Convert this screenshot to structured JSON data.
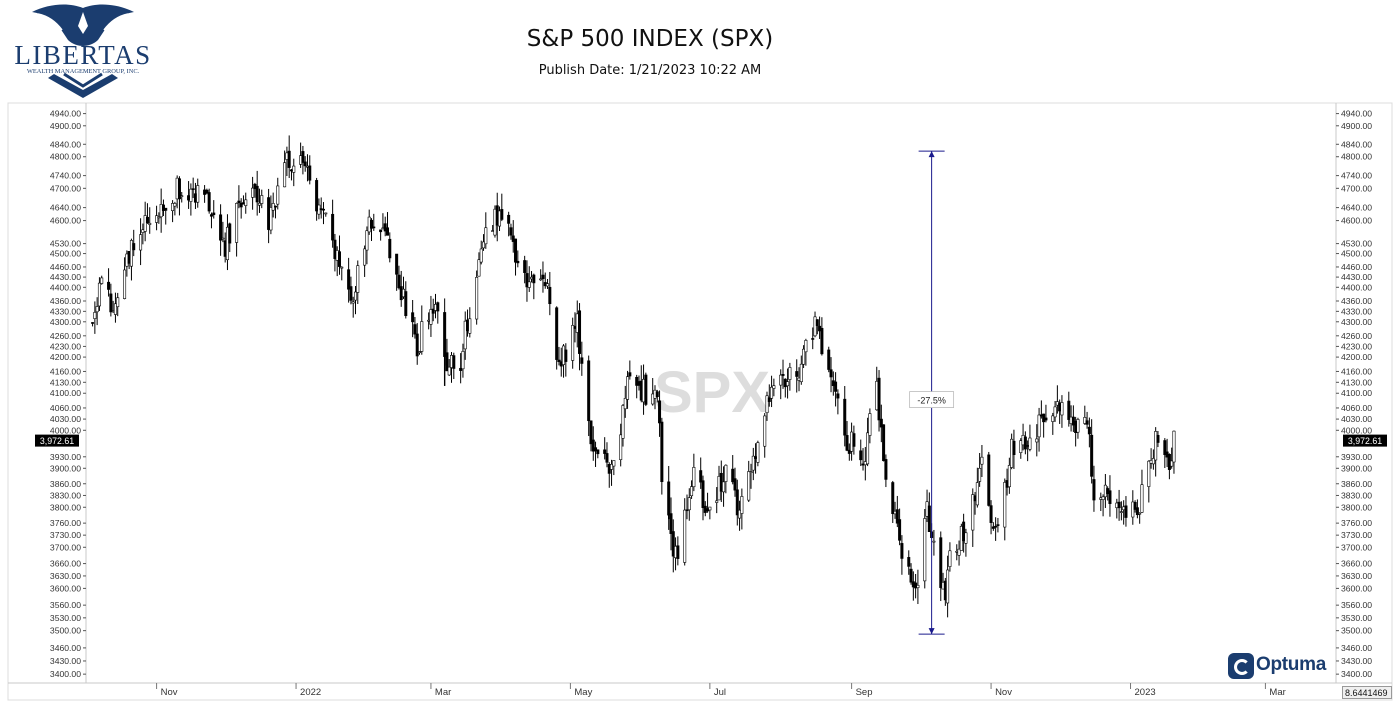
{
  "header": {
    "brand_name": "LIBERTAS",
    "brand_tagline": "WEALTH MANAGEMENT GROUP, INC.",
    "title": "S&P 500 INDEX (SPX)",
    "publish_date": "Publish Date: 1/21/2023 10:22 AM"
  },
  "footer": {
    "vendor": "Optuma",
    "scale_box": "8.6441469"
  },
  "colors": {
    "candle": "#000000",
    "measure": "#1a1a8c",
    "price_tag_bg": "#000000",
    "watermark": "#d8d8d8",
    "brand": "#1b3d6f"
  },
  "chart_data": {
    "type": "ohlc",
    "title": "S&P 500 INDEX (SPX)",
    "subtitle": "Publish Date: 1/21/2023 10:22 AM",
    "watermark": "SPX",
    "y_scale": "log",
    "ylim": [
      3380,
      4975
    ],
    "y_ticks": [
      "4940.00",
      "4900.00",
      "4840.00",
      "4800.00",
      "4740.00",
      "4700.00",
      "4640.00",
      "4600.00",
      "4530.00",
      "4500.00",
      "4460.00",
      "4430.00",
      "4400.00",
      "4360.00",
      "4330.00",
      "4300.00",
      "4260.00",
      "4230.00",
      "4200.00",
      "4160.00",
      "4130.00",
      "4100.00",
      "4060.00",
      "4030.00",
      "4000.00",
      "3930.00",
      "3900.00",
      "3860.00",
      "3830.00",
      "3800.00",
      "3760.00",
      "3730.00",
      "3700.00",
      "3660.00",
      "3630.00",
      "3600.00",
      "3560.00",
      "3530.00",
      "3500.00",
      "3460.00",
      "3430.00",
      "3400.00"
    ],
    "xlim": [
      "2021-10-02",
      "2023-03-31"
    ],
    "x_ticks": [
      {
        "date": "2021-11-01",
        "label": "Nov"
      },
      {
        "date": "2022-01-01",
        "label": "2022"
      },
      {
        "date": "2022-03-01",
        "label": "Mar"
      },
      {
        "date": "2022-05-01",
        "label": "May"
      },
      {
        "date": "2022-07-01",
        "label": "Jul"
      },
      {
        "date": "2022-09-01",
        "label": "Sep"
      },
      {
        "date": "2022-11-01",
        "label": "Nov"
      },
      {
        "date": "2023-01-01",
        "label": "2023"
      },
      {
        "date": "2023-03-01",
        "label": "Mar"
      }
    ],
    "last_price": 3972.61,
    "last_price_label": "3,972.61",
    "measurement": {
      "label": "-27.5%",
      "date": "2022-10-06",
      "high": 4818,
      "low": 3492
    },
    "price_path": [
      [
        "2021-10-04",
        4300
      ],
      [
        "2021-10-07",
        4400
      ],
      [
        "2021-10-13",
        4350
      ],
      [
        "2021-10-18",
        4480
      ],
      [
        "2021-10-25",
        4570
      ],
      [
        "2021-11-01",
        4610
      ],
      [
        "2021-11-08",
        4690
      ],
      [
        "2021-11-15",
        4700
      ],
      [
        "2021-11-22",
        4690
      ],
      [
        "2021-11-26",
        4590
      ],
      [
        "2021-12-01",
        4520
      ],
      [
        "2021-12-06",
        4620
      ],
      [
        "2021-12-10",
        4700
      ],
      [
        "2021-12-16",
        4660
      ],
      [
        "2021-12-20",
        4570
      ],
      [
        "2021-12-27",
        4780
      ],
      [
        "2022-01-04",
        4800
      ],
      [
        "2022-01-10",
        4670
      ],
      [
        "2022-01-14",
        4610
      ],
      [
        "2022-01-20",
        4480
      ],
      [
        "2022-01-24",
        4360
      ],
      [
        "2022-01-28",
        4430
      ],
      [
        "2022-02-02",
        4590
      ],
      [
        "2022-02-09",
        4550
      ],
      [
        "2022-02-15",
        4400
      ],
      [
        "2022-02-23",
        4230
      ],
      [
        "2022-02-28",
        4330
      ],
      [
        "2022-03-04",
        4320
      ],
      [
        "2022-03-08",
        4170
      ],
      [
        "2022-03-14",
        4190
      ],
      [
        "2022-03-21",
        4460
      ],
      [
        "2022-03-29",
        4620
      ],
      [
        "2022-04-04",
        4580
      ],
      [
        "2022-04-12",
        4400
      ],
      [
        "2022-04-21",
        4400
      ],
      [
        "2022-04-26",
        4180
      ],
      [
        "2022-05-04",
        4300
      ],
      [
        "2022-05-09",
        3990
      ],
      [
        "2022-05-12",
        3930
      ],
      [
        "2022-05-20",
        3900
      ],
      [
        "2022-05-27",
        4150
      ],
      [
        "2022-06-03",
        4100
      ],
      [
        "2022-06-08",
        4110
      ],
      [
        "2022-06-10",
        3900
      ],
      [
        "2022-06-16",
        3670
      ],
      [
        "2022-06-24",
        3900
      ],
      [
        "2022-06-30",
        3780
      ],
      [
        "2022-07-08",
        3900
      ],
      [
        "2022-07-14",
        3790
      ],
      [
        "2022-07-22",
        3960
      ],
      [
        "2022-07-29",
        4130
      ],
      [
        "2022-08-08",
        4140
      ],
      [
        "2022-08-16",
        4300
      ],
      [
        "2022-08-22",
        4140
      ],
      [
        "2022-08-30",
        3980
      ],
      [
        "2022-09-06",
        3910
      ],
      [
        "2022-09-12",
        4110
      ],
      [
        "2022-09-16",
        3880
      ],
      [
        "2022-09-23",
        3700
      ],
      [
        "2022-09-30",
        3590
      ],
      [
        "2022-10-04",
        3790
      ],
      [
        "2022-10-12",
        3580
      ],
      [
        "2022-10-13",
        3670
      ],
      [
        "2022-10-21",
        3750
      ],
      [
        "2022-10-28",
        3900
      ],
      [
        "2022-11-03",
        3720
      ],
      [
        "2022-11-10",
        3950
      ],
      [
        "2022-11-16",
        3960
      ],
      [
        "2022-11-23",
        4030
      ],
      [
        "2022-11-30",
        4080
      ],
      [
        "2022-12-05",
        4000
      ],
      [
        "2022-12-13",
        4020
      ],
      [
        "2022-12-16",
        3850
      ],
      [
        "2022-12-22",
        3820
      ],
      [
        "2022-12-28",
        3790
      ],
      [
        "2023-01-05",
        3810
      ],
      [
        "2023-01-10",
        3920
      ],
      [
        "2023-01-13",
        3990
      ],
      [
        "2023-01-18",
        3930
      ],
      [
        "2023-01-20",
        3972.61
      ]
    ],
    "gaps": [
      {
        "date": "2022-06-13",
        "open": 3830,
        "high": 3850,
        "low": 3770,
        "close": 3790
      },
      {
        "date": "2022-03-07",
        "open": 4290,
        "high": 4300,
        "low": 4120,
        "close": 4200
      }
    ]
  }
}
